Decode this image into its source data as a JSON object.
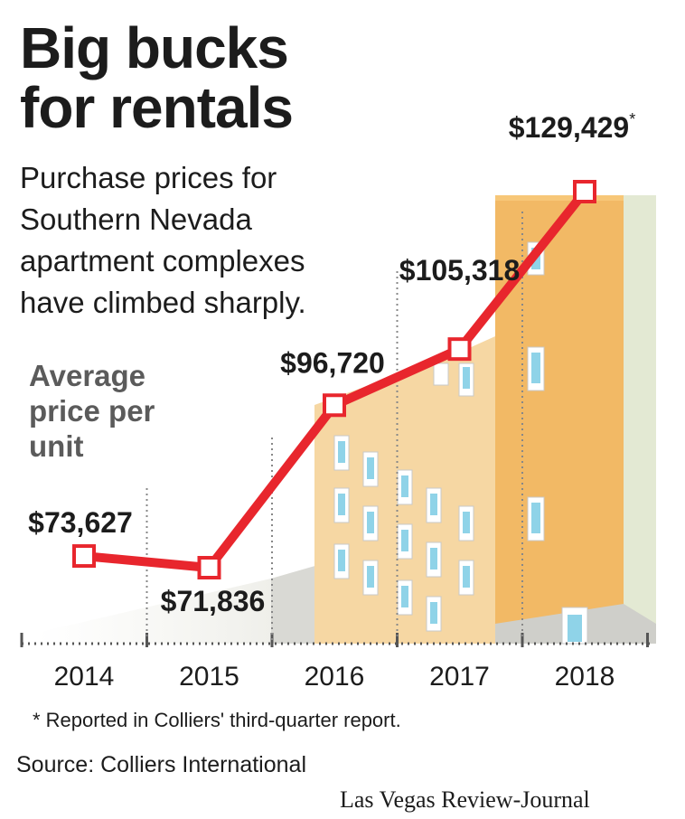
{
  "header": {
    "title_line1": "Big bucks",
    "title_line2": "for rentals",
    "subtitle_line1": "Purchase prices for",
    "subtitle_line2": "Southern Nevada",
    "subtitle_line3": "apartment complexes",
    "subtitle_line4": "have climbed sharply."
  },
  "ylabel": {
    "line1": "Average",
    "line2": "price per",
    "line3": "unit"
  },
  "footer": {
    "footnote": "* Reported in Colliers' third-quarter report.",
    "source": "Source: Colliers International",
    "credit": "Las Vegas Review-Journal"
  },
  "colors": {
    "line": "#e8262d",
    "marker_fill": "#ffffff",
    "building_light": "#f6d7a3",
    "building_dark": "#f2b965",
    "background_right": "#e3e9d3"
  },
  "chart_data": {
    "type": "line",
    "categories": [
      "2014",
      "2015",
      "2016",
      "2017",
      "2018"
    ],
    "values": [
      73627,
      71836,
      96720,
      105318,
      129429
    ],
    "labels": [
      "$73,627",
      "$71,836",
      "$96,720",
      "$105,318",
      "$129,429"
    ],
    "annotations": [
      "",
      "",
      "",
      "",
      "*"
    ],
    "ylim": [
      60000,
      135000
    ],
    "grid": false
  }
}
